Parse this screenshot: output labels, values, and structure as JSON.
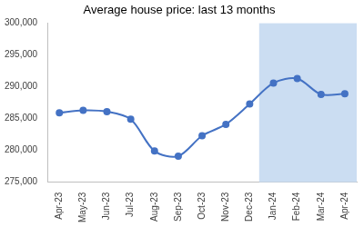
{
  "chart_data": {
    "type": "line",
    "title": "Average house price: last 13 months",
    "categories": [
      "Apr-23",
      "May-23",
      "Jun-23",
      "Jul-23",
      "Aug-23",
      "Sep-23",
      "Oct-23",
      "Nov-23",
      "Dec-23",
      "Jan-24",
      "Feb-24",
      "Mar-24",
      "Apr-24"
    ],
    "values": [
      285900,
      286300,
      286100,
      284900,
      279900,
      279100,
      282300,
      284100,
      287300,
      290600,
      291300,
      288800,
      288900
    ],
    "color": "#4472c4",
    "marker": "circle",
    "ylim": [
      275000,
      300000
    ],
    "yticks": [
      {
        "value": 275000,
        "label": "275,000"
      },
      {
        "value": 280000,
        "label": "280,000"
      },
      {
        "value": 285000,
        "label": "285,000"
      },
      {
        "value": 290000,
        "label": "290,000"
      },
      {
        "value": 295000,
        "label": "295,000"
      },
      {
        "value": 300000,
        "label": "300,000"
      }
    ],
    "grid": false
  }
}
